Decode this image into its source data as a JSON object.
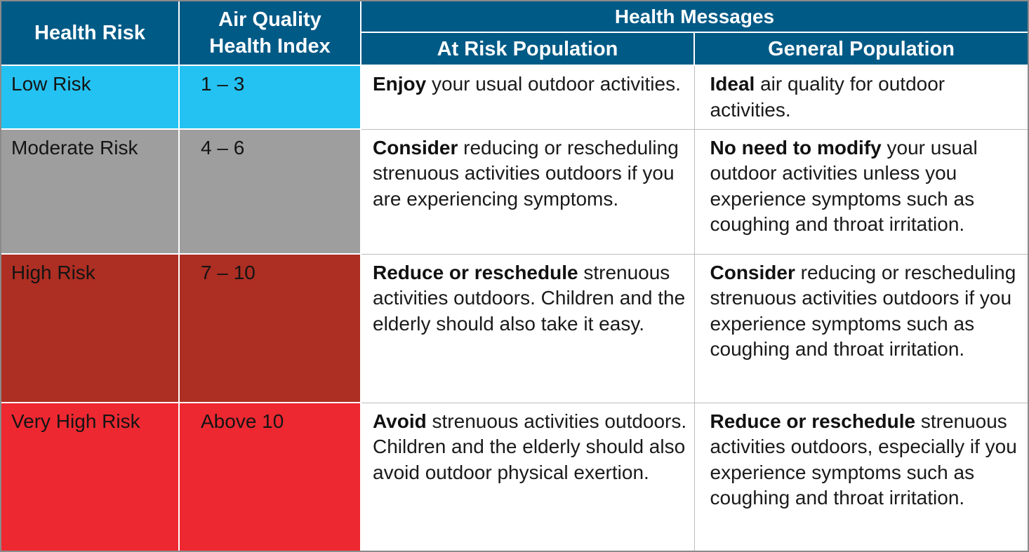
{
  "colors": {
    "header_bg": "#005a86",
    "header_text": "#ffffff",
    "low": "#24c2f2",
    "moderate": "#9e9e9e",
    "high": "#ad2e22",
    "very_high": "#ee2831"
  },
  "headers": {
    "health_risk": "Health Risk",
    "aqhi_line1": "Air Quality",
    "aqhi_line2": "Health Index",
    "health_messages": "Health Messages",
    "at_risk": "At Risk Population",
    "general": "General Population"
  },
  "rows": [
    {
      "risk": "Low Risk",
      "index": "1 – 3",
      "at_risk_bold": "Enjoy",
      "at_risk_text": " your usual outdoor activities.",
      "general_bold": "Ideal",
      "general_text": " air quality for outdoor activities."
    },
    {
      "risk": "Moderate Risk",
      "index": "4 – 6",
      "at_risk_bold": "Consider",
      "at_risk_text": " reducing or rescheduling strenuous activities outdoors if you are experiencing symptoms.",
      "general_bold": "No need to modify",
      "general_text": " your usual outdoor activities unless you experience symptoms such as coughing and throat irritation."
    },
    {
      "risk": "High Risk",
      "index": "7 – 10",
      "at_risk_bold": "Reduce or reschedule",
      "at_risk_text": " strenuous activities outdoors. Children and the elderly should also take it easy.",
      "general_bold": "Consider",
      "general_text": " reducing or rescheduling strenuous activities outdoors if you experience symptoms such as coughing and throat irritation."
    },
    {
      "risk": "Very High Risk",
      "index": "Above 10",
      "at_risk_bold": "Avoid",
      "at_risk_text": " strenuous activities outdoors. Children and the elderly should also avoid outdoor physical exertion.",
      "general_bold": "Reduce or reschedule",
      "general_text": " strenuous activities outdoors, especially if you experience symptoms such as coughing and throat irritation."
    }
  ]
}
